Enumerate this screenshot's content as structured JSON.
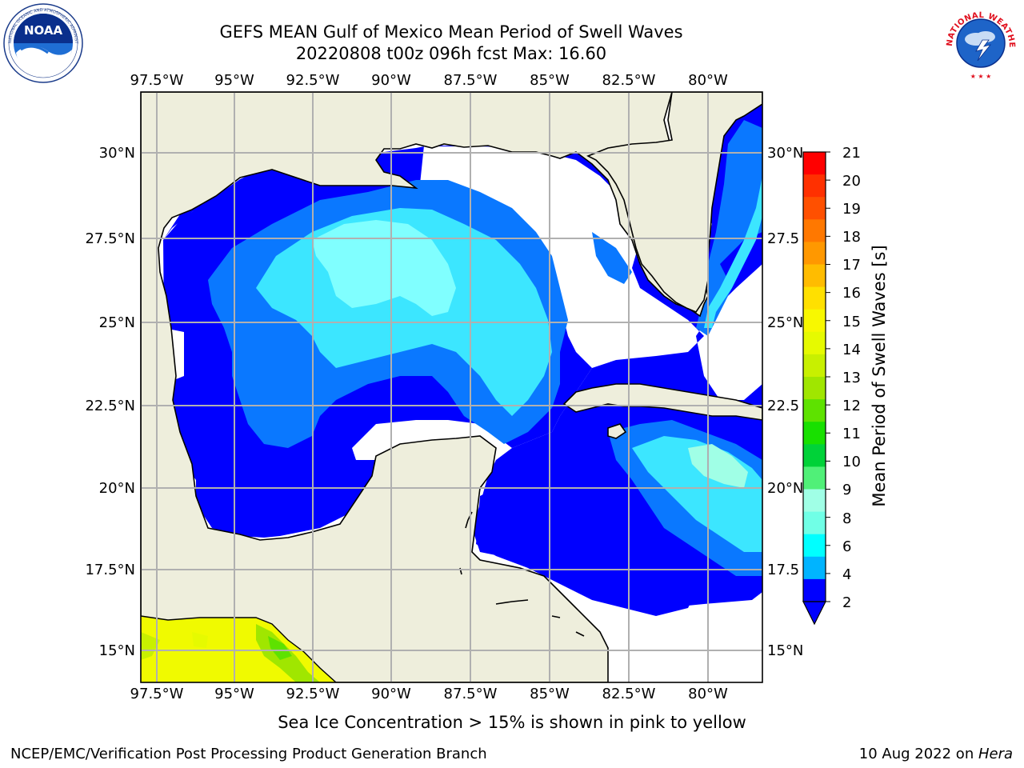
{
  "header": {
    "title_line1": "GEFS MEAN Gulf of Mexico Mean Period of Swell Waves",
    "title_line2": "20220808 t00z 096h fcst   Max: 16.60"
  },
  "logos": {
    "left": "noaa-logo",
    "left_text": "NOAA",
    "left_ring_text": "NATIONAL OCEANIC AND ATMOSPHERIC ADMINISTRATION · U.S. DEPARTMENT OF COMMERCE",
    "right": "national-weather-service-logo",
    "right_ring_text": "NATIONAL WEATHER SERVICE"
  },
  "map": {
    "lon_labels": [
      "97.5°W",
      "95°W",
      "92.5°W",
      "90°W",
      "87.5°W",
      "85°W",
      "82.5°W",
      "80°W"
    ],
    "lat_labels_left": [
      "30°N",
      "27.5°N",
      "25°N",
      "22.5°N",
      "20°N",
      "17.5°N",
      "15°N"
    ],
    "lat_labels_right": [
      "30°N",
      "27.5",
      "25°N",
      "22.5",
      "20°N",
      "17.5",
      "15°N"
    ],
    "land_color": "#eeeedc",
    "ocean_missing_color": "#ffffff"
  },
  "colorbar": {
    "label": "Mean Period of Swell Waves [s]",
    "ticks": [
      "21",
      "20",
      "19",
      "18",
      "17",
      "16",
      "15",
      "14",
      "13",
      "12",
      "11",
      "10",
      "9",
      "8",
      "6",
      "4",
      "2"
    ],
    "colors": [
      "#ff0000",
      "#ff3000",
      "#ff5000",
      "#ff7800",
      "#ff9800",
      "#ffbc00",
      "#ffe000",
      "#f8f800",
      "#e6fa00",
      "#c8f000",
      "#a0e600",
      "#5ee200",
      "#18e000",
      "#00d238",
      "#50f078",
      "#a0ffe6",
      "#70ffe6",
      "#00ffff",
      "#00b4ff",
      "#0000ff"
    ],
    "extend_color": "#0000ff"
  },
  "caption": "Sea Ice Concentration > 15% is shown in pink to yellow",
  "footer": {
    "left": "NCEP/EMC/Verification Post Processing Product Generation Branch",
    "date": "10 Aug 2022 on ",
    "machine": "Hera"
  }
}
